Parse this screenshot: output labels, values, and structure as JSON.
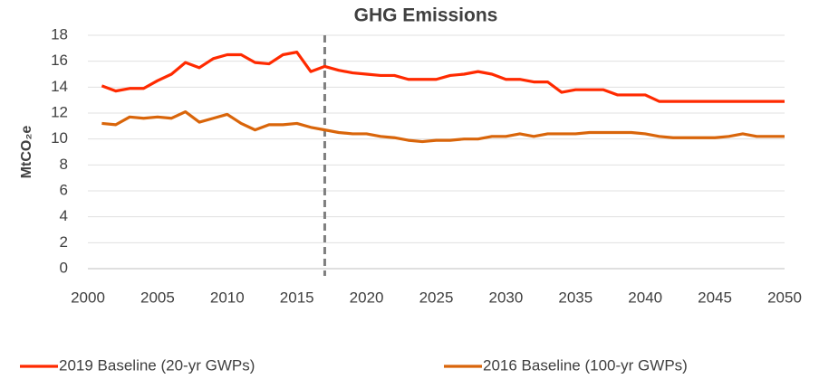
{
  "chart_data": {
    "type": "line",
    "title": "GHG Emissions",
    "y_label": "MtCO₂e",
    "x": [
      2001,
      2002,
      2003,
      2004,
      2005,
      2006,
      2007,
      2008,
      2009,
      2010,
      2011,
      2012,
      2013,
      2014,
      2015,
      2016,
      2017,
      2018,
      2019,
      2020,
      2021,
      2022,
      2023,
      2024,
      2025,
      2026,
      2027,
      2028,
      2029,
      2030,
      2031,
      2032,
      2033,
      2034,
      2035,
      2036,
      2037,
      2038,
      2039,
      2040,
      2041,
      2042,
      2043,
      2044,
      2045,
      2046,
      2047,
      2048,
      2049,
      2050
    ],
    "series": [
      {
        "name": "2019 Baseline (20-yr GWPs)",
        "color": "#ff2a00",
        "values": [
          14.1,
          13.7,
          13.9,
          13.9,
          14.5,
          15.0,
          15.9,
          15.5,
          16.2,
          16.5,
          16.5,
          15.9,
          15.8,
          16.5,
          16.7,
          15.2,
          15.6,
          15.3,
          15.1,
          15.0,
          14.9,
          14.9,
          14.6,
          14.6,
          14.6,
          14.9,
          15.0,
          15.2,
          15.0,
          14.6,
          14.6,
          14.4,
          14.4,
          13.6,
          13.8,
          13.8,
          13.8,
          13.4,
          13.4,
          13.4,
          12.9,
          12.9,
          12.9,
          12.9,
          12.9,
          12.9,
          12.9,
          12.9,
          12.9,
          12.9
        ]
      },
      {
        "name": "2016 Baseline (100-yr GWPs)",
        "color": "#d9650a",
        "values": [
          11.2,
          11.1,
          11.7,
          11.6,
          11.7,
          11.6,
          12.1,
          11.3,
          11.6,
          11.9,
          11.2,
          10.7,
          11.1,
          11.1,
          11.2,
          10.9,
          10.7,
          10.5,
          10.4,
          10.4,
          10.2,
          10.1,
          9.9,
          9.8,
          9.9,
          9.9,
          10.0,
          10.0,
          10.2,
          10.2,
          10.4,
          10.2,
          10.4,
          10.4,
          10.4,
          10.5,
          10.5,
          10.5,
          10.5,
          10.4,
          10.2,
          10.1,
          10.1,
          10.1,
          10.1,
          10.2,
          10.4,
          10.2,
          10.2,
          10.2
        ]
      }
    ],
    "reference_line": {
      "x": 2017,
      "color": "#7f7f7f",
      "style": "dashed"
    },
    "xlim": [
      2000,
      2050
    ],
    "xticks": [
      2000,
      2005,
      2010,
      2015,
      2020,
      2025,
      2030,
      2035,
      2040,
      2045,
      2050
    ],
    "ylim": [
      0,
      18
    ],
    "yticks": [
      0,
      2,
      4,
      6,
      8,
      10,
      12,
      14,
      16,
      18
    ],
    "grid": true,
    "legend": "bottom"
  }
}
